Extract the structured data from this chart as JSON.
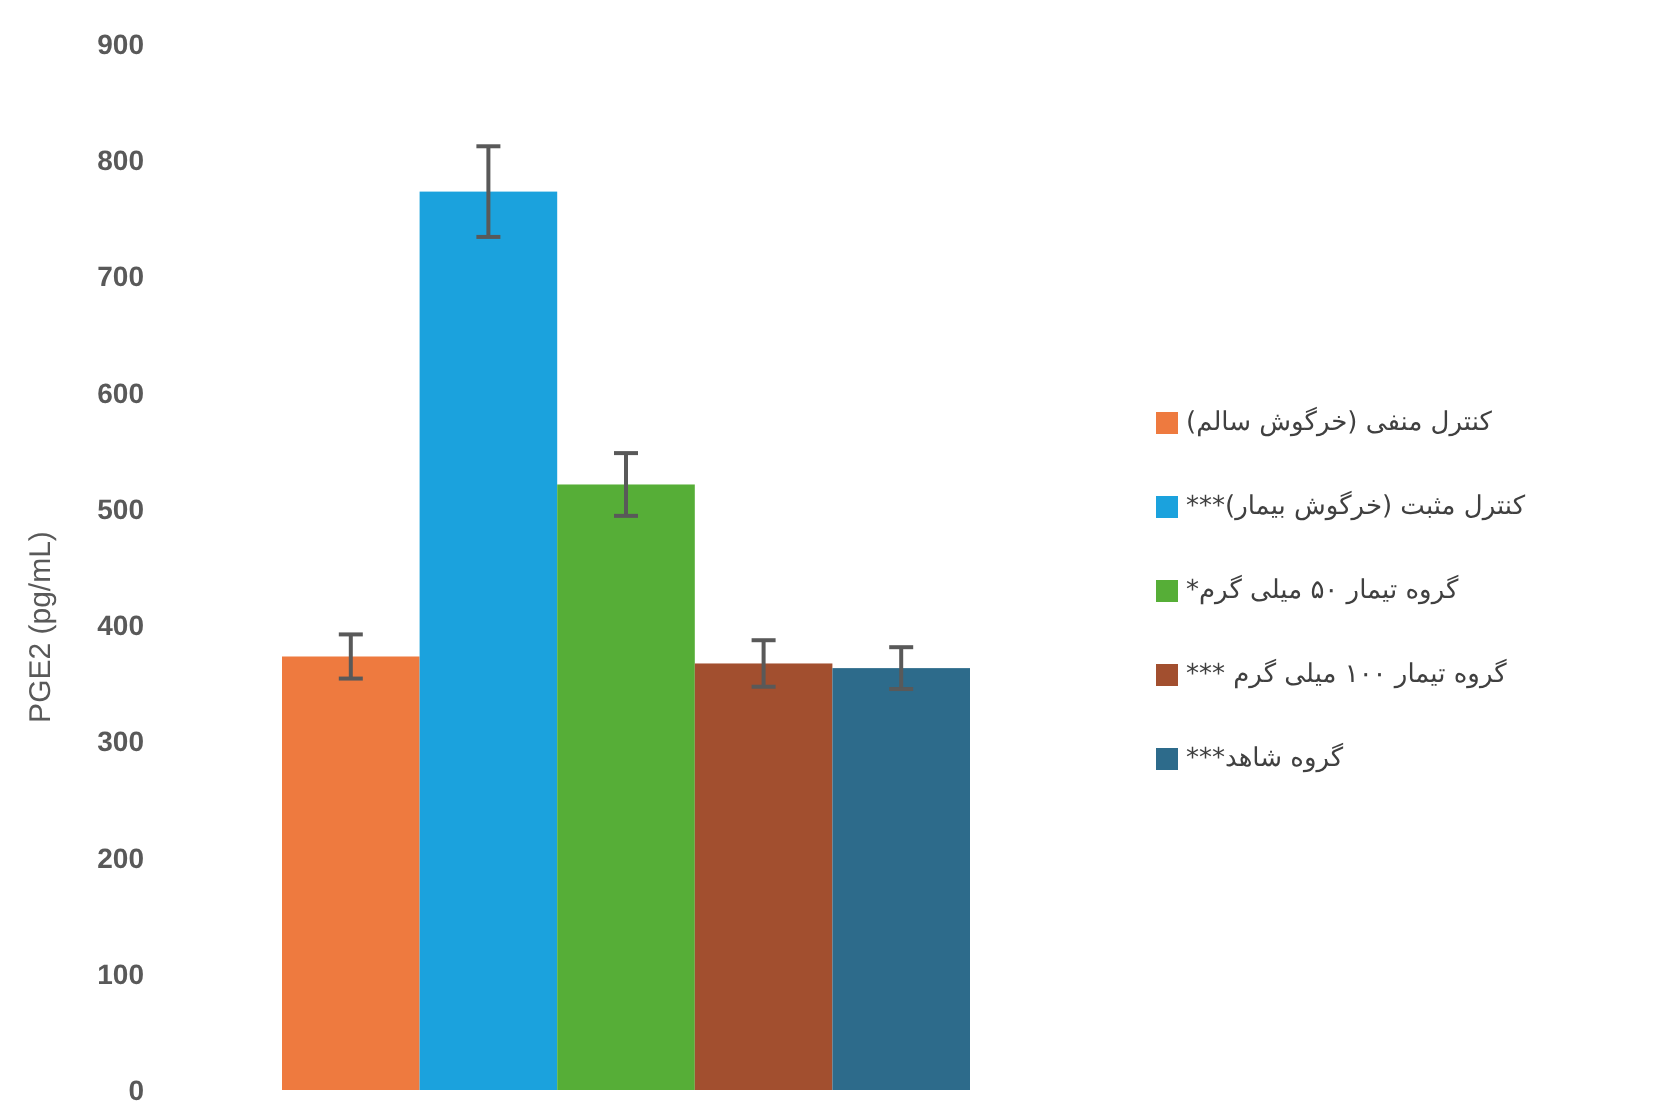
{
  "chart_data": {
    "type": "bar",
    "ylabel": "PGE2 (pg/mL)",
    "categories": [
      null
    ],
    "ylim": [
      0,
      900
    ],
    "yticks": [
      0,
      100,
      200,
      300,
      400,
      500,
      600,
      700,
      800,
      900
    ],
    "grid": false,
    "legend": "right",
    "series": [
      {
        "name": "کنترل منفی (خرگوش سالم)",
        "color": "#ee7a3f",
        "values": [
          373
        ],
        "errors": [
          19
        ]
      },
      {
        "name": "کنترل مثبت (خرگوش بیمار)***",
        "color": "#1ba2dd",
        "values": [
          773
        ],
        "errors": [
          39
        ]
      },
      {
        "name": "گروه تیمار ۵۰ میلی گرم*",
        "color": "#56ae37",
        "values": [
          521
        ],
        "errors": [
          27
        ]
      },
      {
        "name": "گروه تیمار ۱۰۰ میلی گرم ***",
        "color": "#a24f2f",
        "values": [
          367
        ],
        "errors": [
          20
        ]
      },
      {
        "name": "گروه شاهد***",
        "color": "#2d6b8b",
        "values": [
          363
        ],
        "errors": [
          18
        ]
      }
    ]
  }
}
